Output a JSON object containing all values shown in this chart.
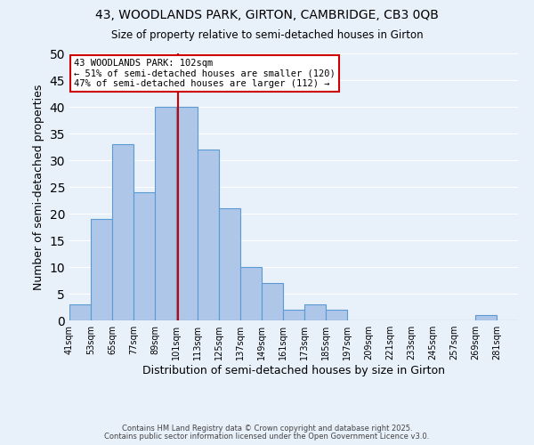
{
  "title1": "43, WOODLANDS PARK, GIRTON, CAMBRIDGE, CB3 0QB",
  "title2": "Size of property relative to semi-detached houses in Girton",
  "xlabel": "Distribution of semi-detached houses by size in Girton",
  "ylabel": "Number of semi-detached properties",
  "bin_labels": [
    "41sqm",
    "53sqm",
    "65sqm",
    "77sqm",
    "89sqm",
    "101sqm",
    "113sqm",
    "125sqm",
    "137sqm",
    "149sqm",
    "161sqm",
    "173sqm",
    "185sqm",
    "197sqm",
    "209sqm",
    "221sqm",
    "233sqm",
    "245sqm",
    "257sqm",
    "269sqm",
    "281sqm"
  ],
  "bin_edges": [
    41,
    53,
    65,
    77,
    89,
    101,
    113,
    125,
    137,
    149,
    161,
    173,
    185,
    197,
    209,
    221,
    233,
    245,
    257,
    269,
    281,
    293
  ],
  "counts": [
    3,
    19,
    33,
    24,
    40,
    40,
    32,
    21,
    10,
    7,
    2,
    3,
    2,
    0,
    0,
    0,
    0,
    0,
    0,
    1,
    0
  ],
  "bar_color": "#aec6e8",
  "bar_edge_color": "#5b9bd5",
  "property_value": 102,
  "annotation_title": "43 WOODLANDS PARK: 102sqm",
  "annotation_line1": "← 51% of semi-detached houses are smaller (120)",
  "annotation_line2": "47% of semi-detached houses are larger (112) →",
  "annotation_box_color": "#ffffff",
  "annotation_box_edge": "#cc0000",
  "vline_color": "#cc0000",
  "ylim": [
    0,
    50
  ],
  "yticks": [
    0,
    5,
    10,
    15,
    20,
    25,
    30,
    35,
    40,
    45,
    50
  ],
  "footer1": "Contains HM Land Registry data © Crown copyright and database right 2025.",
  "footer2": "Contains public sector information licensed under the Open Government Licence v3.0.",
  "bg_color": "#e8f0fa",
  "grid_color": "#ffffff"
}
